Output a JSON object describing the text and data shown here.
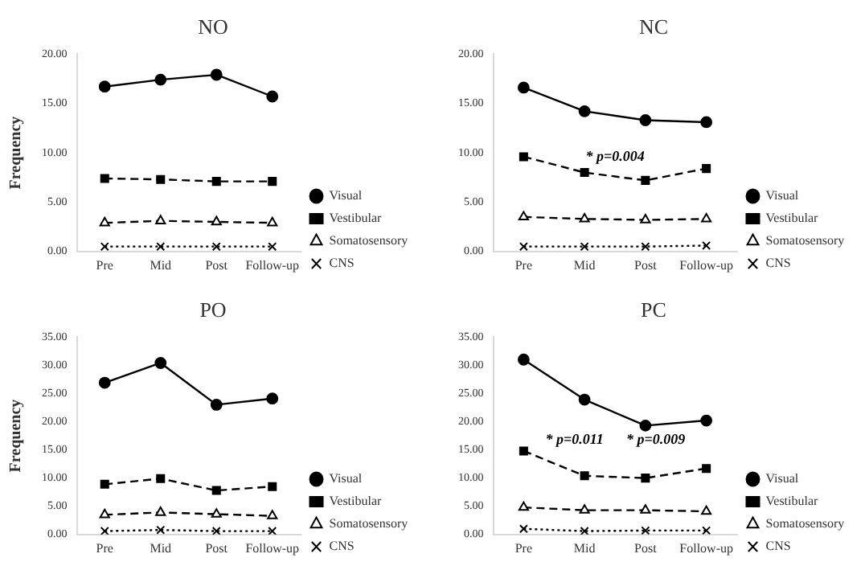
{
  "chart_data": [
    {
      "type": "line",
      "title": "NO",
      "ylabel": "Frequency",
      "categories": [
        "Pre",
        "Mid",
        "Post",
        "Follow-up"
      ],
      "ylim": [
        0,
        20
      ],
      "yticks": [
        {
          "value": 0,
          "label": "0.00"
        },
        {
          "value": 5,
          "label": "5.00"
        },
        {
          "value": 10,
          "label": "10.00"
        },
        {
          "value": 15,
          "label": "15.00"
        },
        {
          "value": 20,
          "label": "20.00"
        }
      ],
      "legend": "right",
      "grid": false,
      "series": [
        {
          "name": "Visual",
          "color": "#000000",
          "marker": "circle",
          "line_style": "solid",
          "values": [
            16.7,
            17.4,
            17.9,
            15.7
          ]
        },
        {
          "name": "Vestibular",
          "color": "#000000",
          "marker": "square",
          "line_style": "dashed",
          "values": [
            7.4,
            7.3,
            7.1,
            7.1
          ]
        },
        {
          "name": "Somatosensory",
          "color": "#000000",
          "marker": "triangle",
          "line_style": "dashed",
          "values": [
            2.9,
            3.1,
            3.0,
            2.9
          ]
        },
        {
          "name": "CNS",
          "color": "#000000",
          "marker": "cross",
          "line_style": "dotted",
          "values": [
            0.5,
            0.5,
            0.5,
            0.5
          ]
        }
      ]
    },
    {
      "type": "line",
      "title": "NC",
      "categories": [
        "Pre",
        "Mid",
        "Post",
        "Follow-up"
      ],
      "ylim": [
        0,
        20
      ],
      "yticks": [
        {
          "value": 0,
          "label": "0.00"
        },
        {
          "value": 5,
          "label": "5.00"
        },
        {
          "value": 10,
          "label": "10.00"
        },
        {
          "value": 15,
          "label": "15.00"
        },
        {
          "value": 20,
          "label": "20.00"
        }
      ],
      "legend": "right",
      "grid": false,
      "annotations": [
        "* p=0.004"
      ],
      "series": [
        {
          "name": "Visual",
          "color": "#000000",
          "marker": "circle",
          "line_style": "solid",
          "values": [
            16.6,
            14.2,
            13.3,
            13.1
          ]
        },
        {
          "name": "Vestibular",
          "color": "#000000",
          "marker": "square",
          "line_style": "dashed",
          "values": [
            9.6,
            8.0,
            7.2,
            8.4
          ]
        },
        {
          "name": "Somatosensory",
          "color": "#000000",
          "marker": "triangle",
          "line_style": "dashed",
          "values": [
            3.5,
            3.3,
            3.2,
            3.3
          ]
        },
        {
          "name": "CNS",
          "color": "#000000",
          "marker": "cross",
          "line_style": "dotted",
          "values": [
            0.5,
            0.5,
            0.5,
            0.6
          ]
        }
      ]
    },
    {
      "type": "line",
      "title": "PO",
      "ylabel": "Frequency",
      "categories": [
        "Pre",
        "Mid",
        "Post",
        "Follow-up"
      ],
      "ylim": [
        0,
        35
      ],
      "yticks": [
        {
          "value": 0,
          "label": "0.00"
        },
        {
          "value": 5,
          "label": "5.00"
        },
        {
          "value": 10,
          "label": "10.00"
        },
        {
          "value": 15,
          "label": "15.00"
        },
        {
          "value": 20,
          "label": "20.00"
        },
        {
          "value": 25,
          "label": "25.00"
        },
        {
          "value": 30,
          "label": "30.00"
        },
        {
          "value": 35,
          "label": "35.00"
        }
      ],
      "legend": "right",
      "grid": false,
      "series": [
        {
          "name": "Visual",
          "color": "#000000",
          "marker": "circle",
          "line_style": "solid",
          "values": [
            26.9,
            30.4,
            23.0,
            24.1
          ]
        },
        {
          "name": "Vestibular",
          "color": "#000000",
          "marker": "square",
          "line_style": "dashed",
          "values": [
            8.9,
            9.9,
            7.8,
            8.5
          ]
        },
        {
          "name": "Somatosensory",
          "color": "#000000",
          "marker": "triangle",
          "line_style": "dashed",
          "values": [
            3.5,
            3.9,
            3.6,
            3.3
          ]
        },
        {
          "name": "CNS",
          "color": "#000000",
          "marker": "cross",
          "line_style": "dotted",
          "values": [
            0.6,
            0.8,
            0.6,
            0.6
          ]
        }
      ]
    },
    {
      "type": "line",
      "title": "PC",
      "categories": [
        "Pre",
        "Mid",
        "Post",
        "Follow-up"
      ],
      "ylim": [
        0,
        35
      ],
      "yticks": [
        {
          "value": 0,
          "label": "0.00"
        },
        {
          "value": 5,
          "label": "5.00"
        },
        {
          "value": 10,
          "label": "10.00"
        },
        {
          "value": 15,
          "label": "15.00"
        },
        {
          "value": 20,
          "label": "20.00"
        },
        {
          "value": 25,
          "label": "25.00"
        },
        {
          "value": 30,
          "label": "30.00"
        },
        {
          "value": 35,
          "label": "35.00"
        }
      ],
      "legend": "right",
      "grid": false,
      "annotations": [
        "* p=0.011",
        "* p=0.009"
      ],
      "series": [
        {
          "name": "Visual",
          "color": "#000000",
          "marker": "circle",
          "line_style": "solid",
          "values": [
            31.0,
            23.9,
            19.3,
            20.2
          ]
        },
        {
          "name": "Vestibular",
          "color": "#000000",
          "marker": "square",
          "line_style": "dashed",
          "values": [
            14.8,
            10.4,
            10.0,
            11.7
          ]
        },
        {
          "name": "Somatosensory",
          "color": "#000000",
          "marker": "triangle",
          "line_style": "dashed",
          "values": [
            4.8,
            4.3,
            4.3,
            4.1
          ]
        },
        {
          "name": "CNS",
          "color": "#000000",
          "marker": "cross",
          "line_style": "dotted",
          "values": [
            1.0,
            0.6,
            0.7,
            0.7
          ]
        }
      ]
    }
  ]
}
